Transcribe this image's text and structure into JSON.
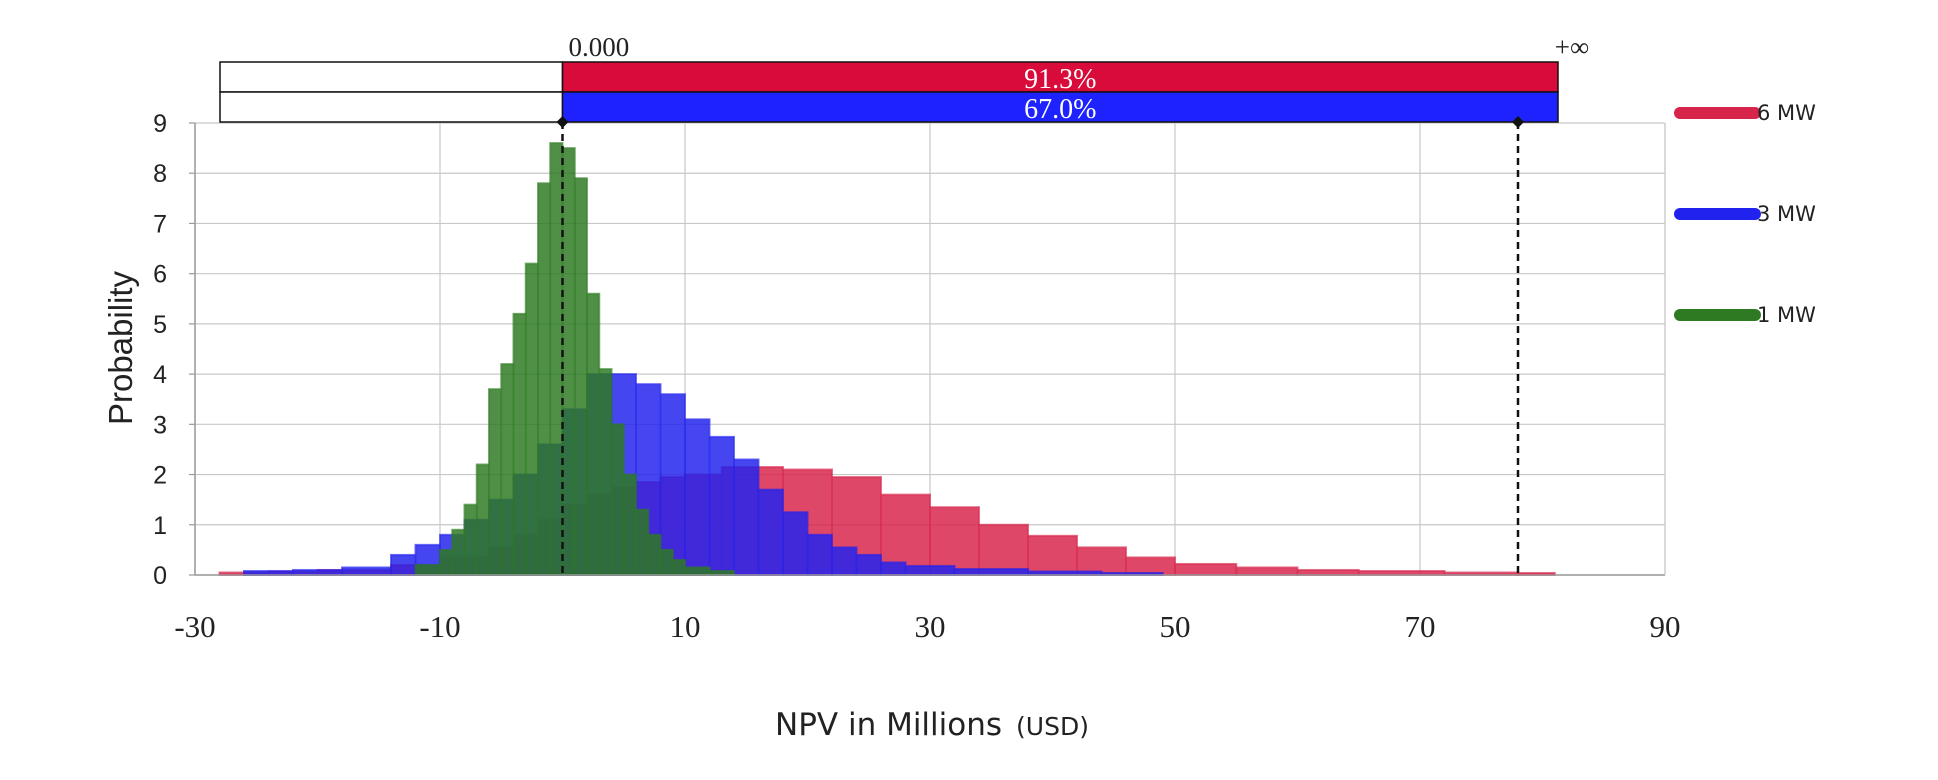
{
  "chart_data": {
    "type": "histogram",
    "title": "",
    "xlabel": "NPV in Millions",
    "xlabel_unit": "(USD)",
    "ylabel": "Probability",
    "xlim": [
      -30,
      90
    ],
    "ylim": [
      0,
      9
    ],
    "x_ticks": [
      "-30",
      "-10",
      "10",
      "30",
      "50",
      "70",
      "90"
    ],
    "y_ticks": [
      "0",
      "1",
      "2",
      "3",
      "4",
      "5",
      "6",
      "7",
      "8",
      "9"
    ],
    "grid": true,
    "legend_position": "right",
    "lower_bound_label": "0.000",
    "upper_bound_label": "+∞",
    "lower_bound_x": 0,
    "upper_bound_x": 78,
    "series": [
      {
        "name": "6 MW",
        "color": "#d7244a",
        "probability_label": "91.3%",
        "bins": [
          [
            -28,
            -26,
            0.05
          ],
          [
            -26,
            -24,
            0.05
          ],
          [
            -24,
            -20,
            0.07
          ],
          [
            -20,
            -14,
            0.1
          ],
          [
            -14,
            -10,
            0.2
          ],
          [
            -10,
            -6,
            0.35
          ],
          [
            -6,
            -4,
            0.55
          ],
          [
            -4,
            -2,
            0.8
          ],
          [
            -2,
            0,
            1.1
          ],
          [
            0,
            2,
            1.4
          ],
          [
            2,
            4,
            1.6
          ],
          [
            4,
            6,
            1.75
          ],
          [
            6,
            8,
            1.85
          ],
          [
            8,
            10,
            1.95
          ],
          [
            10,
            13,
            2.0
          ],
          [
            13,
            18,
            2.15
          ],
          [
            18,
            22,
            2.1
          ],
          [
            22,
            26,
            1.95
          ],
          [
            26,
            30,
            1.6
          ],
          [
            30,
            34,
            1.35
          ],
          [
            34,
            38,
            1.0
          ],
          [
            38,
            42,
            0.78
          ],
          [
            42,
            46,
            0.55
          ],
          [
            46,
            50,
            0.35
          ],
          [
            50,
            55,
            0.22
          ],
          [
            55,
            60,
            0.15
          ],
          [
            60,
            65,
            0.1
          ],
          [
            65,
            72,
            0.08
          ],
          [
            72,
            78,
            0.05
          ],
          [
            78,
            81,
            0.04
          ]
        ]
      },
      {
        "name": "3 MW",
        "color": "#2222ee",
        "probability_label": "67.0%",
        "bins": [
          [
            -26,
            -22,
            0.08
          ],
          [
            -22,
            -18,
            0.1
          ],
          [
            -18,
            -14,
            0.15
          ],
          [
            -14,
            -12,
            0.4
          ],
          [
            -12,
            -10,
            0.6
          ],
          [
            -10,
            -8,
            0.8
          ],
          [
            -8,
            -6,
            1.1
          ],
          [
            -6,
            -4,
            1.5
          ],
          [
            -4,
            -2,
            2.0
          ],
          [
            -2,
            0,
            2.6
          ],
          [
            0,
            2,
            3.3
          ],
          [
            2,
            4,
            4.0
          ],
          [
            4,
            6,
            4.0
          ],
          [
            6,
            8,
            3.8
          ],
          [
            8,
            10,
            3.6
          ],
          [
            10,
            12,
            3.1
          ],
          [
            12,
            14,
            2.75
          ],
          [
            14,
            16,
            2.3
          ],
          [
            16,
            18,
            1.7
          ],
          [
            18,
            20,
            1.25
          ],
          [
            20,
            22,
            0.8
          ],
          [
            22,
            24,
            0.55
          ],
          [
            24,
            26,
            0.4
          ],
          [
            26,
            28,
            0.25
          ],
          [
            28,
            32,
            0.18
          ],
          [
            32,
            38,
            0.12
          ],
          [
            38,
            44,
            0.07
          ],
          [
            44,
            49,
            0.04
          ]
        ]
      },
      {
        "name": "1 MW",
        "color": "#2d7a22",
        "probability_label": "",
        "bins": [
          [
            -12,
            -10,
            0.2
          ],
          [
            -10,
            -9,
            0.5
          ],
          [
            -9,
            -8,
            0.9
          ],
          [
            -8,
            -7,
            1.4
          ],
          [
            -7,
            -6,
            2.2
          ],
          [
            -6,
            -5,
            3.7
          ],
          [
            -5,
            -4,
            4.2
          ],
          [
            -4,
            -3,
            5.2
          ],
          [
            -3,
            -2,
            6.2
          ],
          [
            -2,
            -1,
            7.8
          ],
          [
            -1,
            0,
            8.6
          ],
          [
            0,
            1,
            8.5
          ],
          [
            1,
            2,
            7.9
          ],
          [
            2,
            3,
            5.6
          ],
          [
            3,
            4,
            4.1
          ],
          [
            4,
            5,
            3.0
          ],
          [
            5,
            6,
            2.0
          ],
          [
            6,
            7,
            1.3
          ],
          [
            7,
            8,
            0.8
          ],
          [
            8,
            9,
            0.5
          ],
          [
            9,
            10,
            0.3
          ],
          [
            10,
            12,
            0.15
          ],
          [
            12,
            14,
            0.08
          ]
        ]
      }
    ]
  }
}
